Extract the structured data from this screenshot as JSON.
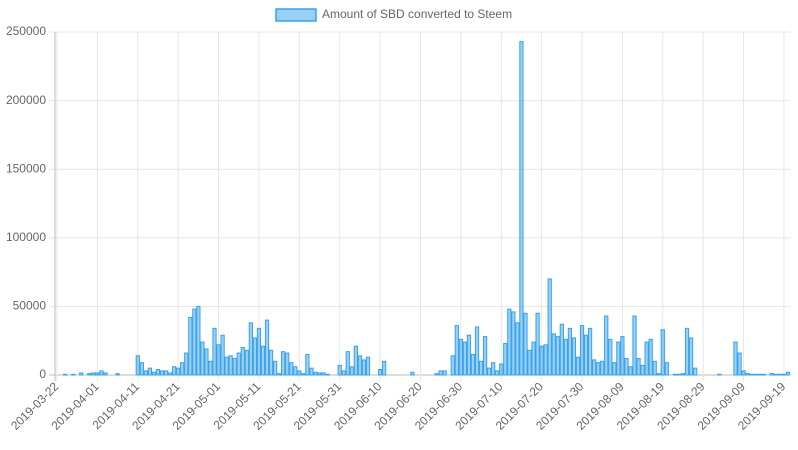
{
  "chart_data": {
    "type": "bar",
    "series": [
      {
        "name": "Amount of SBD converted to Steem",
        "color": "#36a2eb",
        "fill": "rgba(54,162,235,0.5)",
        "values": [
          0,
          0,
          500,
          0,
          500,
          0,
          1500,
          0,
          1000,
          1500,
          1500,
          3000,
          1500,
          0,
          0,
          1000,
          0,
          0,
          0,
          0,
          14000,
          9000,
          3000,
          5000,
          2000,
          4000,
          3000,
          3000,
          1500,
          6000,
          5000,
          9000,
          16000,
          42000,
          48000,
          50000,
          24000,
          19000,
          10000,
          34000,
          22000,
          29000,
          13000,
          14000,
          12000,
          16000,
          20000,
          18000,
          38000,
          27000,
          34000,
          21000,
          40000,
          18000,
          10000,
          1000,
          17000,
          16000,
          9000,
          6000,
          3000,
          1000,
          15000,
          5000,
          2000,
          1500,
          1500,
          500,
          0,
          0,
          7000,
          3000,
          17000,
          6000,
          21000,
          14000,
          11000,
          13000,
          0,
          0,
          4000,
          10000,
          0,
          0,
          0,
          0,
          0,
          0,
          2000,
          0,
          0,
          0,
          0,
          0,
          1000,
          3000,
          3000,
          0,
          14000,
          36000,
          26000,
          24000,
          29000,
          15000,
          35000,
          10000,
          28000,
          5000,
          9000,
          3000,
          8000,
          23000,
          48000,
          46000,
          38000,
          243000,
          45000,
          18000,
          24000,
          45000,
          21000,
          22000,
          70000,
          30000,
          28000,
          37000,
          26000,
          34000,
          27000,
          13000,
          36000,
          29000,
          34000,
          11000,
          9000,
          10000,
          43000,
          26000,
          9000,
          24000,
          28000,
          12000,
          6000,
          43000,
          12000,
          7000,
          24000,
          26000,
          10000,
          1000,
          33000,
          9000,
          0,
          500,
          500,
          1000,
          34000,
          27000,
          5000,
          0,
          0,
          0,
          0,
          0,
          500,
          0,
          0,
          0,
          24000,
          16000,
          3000,
          1000,
          500,
          500,
          500,
          500,
          0,
          1000,
          500,
          500,
          500,
          2000
        ]
      }
    ],
    "categories": [
      "2019-03-22",
      null,
      null,
      null,
      null,
      null,
      null,
      null,
      null,
      null,
      "2019-04-01",
      null,
      null,
      null,
      null,
      null,
      null,
      null,
      null,
      null,
      "2019-04-11",
      null,
      null,
      null,
      null,
      null,
      null,
      null,
      null,
      null,
      "2019-04-21",
      null,
      null,
      null,
      null,
      null,
      null,
      null,
      null,
      null,
      "2019-05-01",
      null,
      null,
      null,
      null,
      null,
      null,
      null,
      null,
      null,
      "2019-05-11",
      null,
      null,
      null,
      null,
      null,
      null,
      null,
      null,
      null,
      "2019-05-21",
      null,
      null,
      null,
      null,
      null,
      null,
      null,
      null,
      null,
      "2019-05-31",
      null,
      null,
      null,
      null,
      null,
      null,
      null,
      null,
      null,
      "2019-06-10",
      null,
      null,
      null,
      null,
      null,
      null,
      null,
      null,
      null,
      "2019-06-20",
      null,
      null,
      null,
      null,
      null,
      null,
      null,
      null,
      null,
      "2019-06-30",
      null,
      null,
      null,
      null,
      null,
      null,
      null,
      null,
      null,
      "2019-07-10",
      null,
      null,
      null,
      null,
      null,
      null,
      null,
      null,
      null,
      "2019-07-20",
      null,
      null,
      null,
      null,
      null,
      null,
      null,
      null,
      null,
      "2019-07-30",
      null,
      null,
      null,
      null,
      null,
      null,
      null,
      null,
      null,
      "2019-08-09",
      null,
      null,
      null,
      null,
      null,
      null,
      null,
      null,
      null,
      "2019-08-19",
      null,
      null,
      null,
      null,
      null,
      null,
      null,
      null,
      null,
      "2019-08-29",
      null,
      null,
      null,
      null,
      null,
      null,
      null,
      null,
      null,
      "2019-09-09",
      null,
      null,
      null,
      null,
      null,
      null,
      null,
      null,
      null,
      "2019-09-19",
      null
    ],
    "ylim": [
      0,
      250000
    ],
    "yticks": [
      0,
      50000,
      100000,
      150000,
      200000,
      250000
    ],
    "grid": true,
    "legend": "top"
  }
}
